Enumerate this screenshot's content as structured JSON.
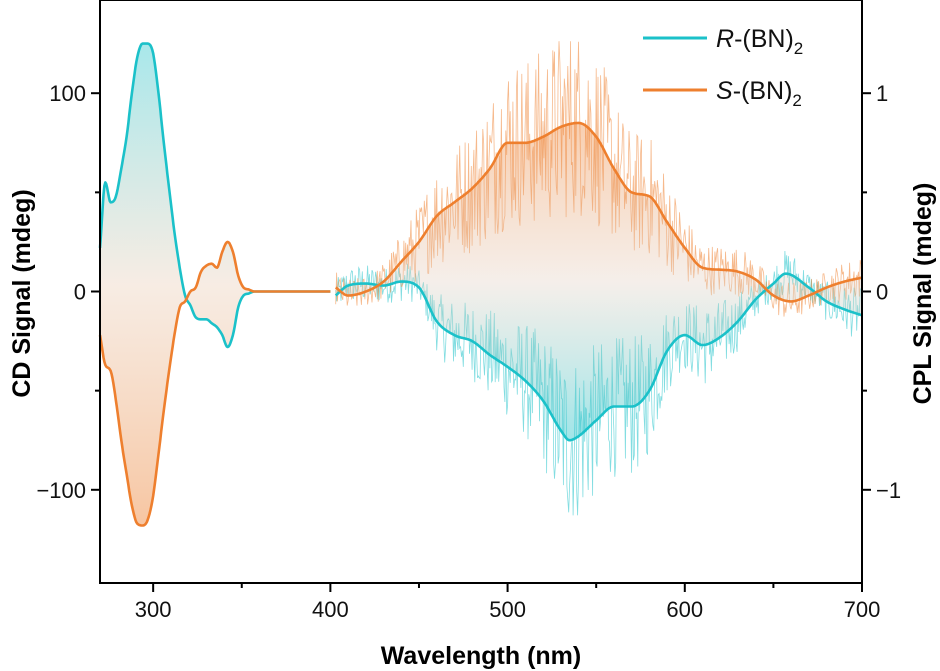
{
  "chart_data": {
    "type": "line",
    "xlabel": "Wavelength (nm)",
    "ylabel_left": "CD Signal (mdeg)",
    "ylabel_right": "CPL Signal (mdeg)",
    "xlim": [
      270,
      700
    ],
    "ylim_left": [
      -147,
      147
    ],
    "ylim_right": [
      -1.47,
      1.47
    ],
    "grid": false,
    "legend_position": "top-right",
    "x_ticks": [
      {
        "value": 300,
        "label": "300"
      },
      {
        "value": 400,
        "label": "400"
      },
      {
        "value": 500,
        "label": "500"
      },
      {
        "value": 600,
        "label": "600"
      },
      {
        "value": 700,
        "label": "700"
      }
    ],
    "y_ticks_left": [
      {
        "value": 100,
        "label": "100"
      },
      {
        "value": 0,
        "label": "0"
      },
      {
        "value": -100,
        "label": "−100"
      }
    ],
    "y_ticks_right": [
      {
        "value": 1,
        "label": "1"
      },
      {
        "value": 0,
        "label": "0"
      },
      {
        "value": -1,
        "label": "−1"
      }
    ],
    "legend": [
      {
        "italic": "R",
        "text": "-(BN)",
        "sub": "2",
        "color": "#1bc1c9"
      },
      {
        "italic": "S",
        "text": "-(BN)",
        "sub": "2",
        "color": "#ee7f2e"
      }
    ],
    "series": [
      {
        "name": "R-(BN)2 CD",
        "axis": "left",
        "color": "#1bc1c9",
        "x": [
          270,
          273,
          276,
          279,
          282,
          285,
          288,
          291,
          294,
          297,
          300,
          303,
          306,
          309,
          312,
          315,
          318,
          321,
          324,
          327,
          330,
          333,
          336,
          339,
          342,
          345,
          348,
          351,
          354,
          357,
          360,
          370,
          380,
          390,
          400
        ],
        "values": [
          22,
          55,
          45,
          48,
          62,
          78,
          100,
          118,
          125,
          125,
          120,
          100,
          75,
          52,
          30,
          12,
          -2,
          -7,
          -13,
          -14,
          -14,
          -16,
          -18,
          -22,
          -28,
          -22,
          -8,
          -2,
          -1,
          0,
          0,
          0,
          0,
          0,
          0
        ]
      },
      {
        "name": "S-(BN)2 CD",
        "axis": "left",
        "color": "#ee7f2e",
        "x": [
          270,
          273,
          276,
          279,
          282,
          285,
          288,
          291,
          294,
          297,
          300,
          303,
          306,
          309,
          312,
          315,
          318,
          321,
          324,
          327,
          330,
          333,
          336,
          339,
          342,
          345,
          348,
          351,
          354,
          357,
          360,
          370,
          380,
          390,
          400
        ],
        "values": [
          -22,
          -37,
          -40,
          -55,
          -75,
          -92,
          -108,
          -117,
          -118,
          -115,
          -103,
          -82,
          -60,
          -40,
          -22,
          -8,
          -5,
          0,
          2,
          10,
          13,
          14,
          12,
          20,
          25,
          20,
          8,
          2,
          1,
          0,
          0,
          0,
          0,
          0,
          0
        ]
      },
      {
        "name": "R-(BN)2 CPL",
        "axis": "right",
        "color": "#1bc1c9",
        "x": [
          403,
          410,
          420,
          430,
          440,
          450,
          460,
          470,
          480,
          490,
          500,
          510,
          520,
          530,
          535,
          540,
          550,
          560,
          570,
          580,
          590,
          600,
          610,
          620,
          630,
          640,
          650,
          657,
          670,
          680,
          690,
          700
        ],
        "values": [
          -0.02,
          0.03,
          0.04,
          0.03,
          0.05,
          0.02,
          -0.15,
          -0.22,
          -0.25,
          -0.32,
          -0.38,
          -0.45,
          -0.55,
          -0.7,
          -0.75,
          -0.73,
          -0.65,
          -0.58,
          -0.58,
          -0.5,
          -0.3,
          -0.22,
          -0.27,
          -0.23,
          -0.15,
          -0.04,
          0.04,
          0.09,
          0.02,
          -0.05,
          -0.09,
          -0.12
        ]
      },
      {
        "name": "S-(BN)2 CPL",
        "axis": "right",
        "color": "#ee7f2e",
        "x": [
          403,
          410,
          420,
          430,
          440,
          450,
          460,
          470,
          480,
          490,
          500,
          510,
          520,
          530,
          540,
          550,
          560,
          570,
          580,
          590,
          600,
          610,
          620,
          630,
          640,
          650,
          660,
          670,
          680,
          690,
          700
        ],
        "values": [
          0.02,
          -0.02,
          0.0,
          0.05,
          0.15,
          0.25,
          0.38,
          0.45,
          0.52,
          0.62,
          0.75,
          0.75,
          0.78,
          0.83,
          0.85,
          0.78,
          0.62,
          0.5,
          0.48,
          0.35,
          0.22,
          0.12,
          0.11,
          0.1,
          0.06,
          -0.02,
          -0.05,
          -0.02,
          0.02,
          0.05,
          0.07
        ]
      }
    ]
  }
}
